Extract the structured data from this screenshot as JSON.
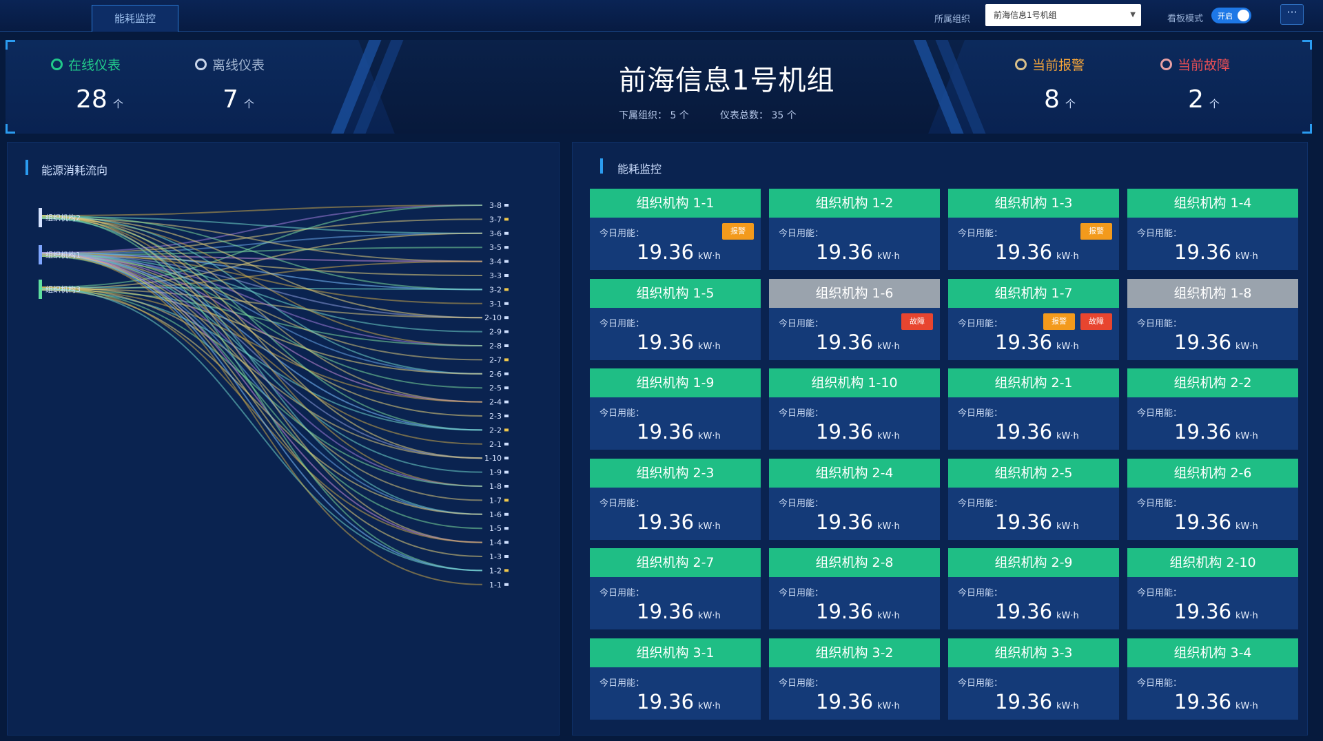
{
  "nav": {
    "active_tab": "能耗监控",
    "org_label": "所属组织",
    "org_value": "前海信息1号机组",
    "board_label": "看板模式",
    "board_toggle": "开启",
    "more": "···"
  },
  "stats": {
    "online": {
      "label": "在线仪表",
      "value": "28",
      "unit": "个",
      "color": "#21c98a"
    },
    "offline": {
      "label": "离线仪表",
      "value": "7",
      "unit": "个",
      "color": "#9fb3cf"
    },
    "alarm": {
      "label": "当前报警",
      "value": "8",
      "unit": "个",
      "color": "#f2a33a"
    },
    "fault": {
      "label": "当前故障",
      "value": "2",
      "unit": "个",
      "color": "#e84e55"
    }
  },
  "unit": {
    "title": "前海信息1号机组",
    "sub_org_label": "下属组织：",
    "sub_org_value": "5 个",
    "meter_total_label": "仪表总数：",
    "meter_total_value": "35 个"
  },
  "flow_panel": {
    "title": "能源消耗流向",
    "sources": [
      "组织机构2",
      "组织机构1",
      "组织机构3"
    ],
    "targets": [
      "3-8",
      "3-7",
      "3-6",
      "3-5",
      "3-4",
      "3-3",
      "3-2",
      "3-1",
      "2-10",
      "2-9",
      "2-8",
      "2-7",
      "2-6",
      "2-5",
      "2-4",
      "2-3",
      "2-2",
      "2-1",
      "1-10",
      "1-9",
      "1-8",
      "1-7",
      "1-6",
      "1-5",
      "1-4",
      "1-3",
      "1-2",
      "1-1"
    ]
  },
  "monitor_panel": {
    "title": "能耗监控",
    "today_label": "今日用能：",
    "cards": [
      {
        "name": "组织机构 1-1",
        "value": "19.36",
        "unit": "kW·h",
        "status": "online",
        "badges": [
          "报警"
        ]
      },
      {
        "name": "组织机构 1-2",
        "value": "19.36",
        "unit": "kW·h",
        "status": "online",
        "badges": []
      },
      {
        "name": "组织机构 1-3",
        "value": "19.36",
        "unit": "kW·h",
        "status": "online",
        "badges": [
          "报警"
        ]
      },
      {
        "name": "组织机构 1-4",
        "value": "19.36",
        "unit": "kW·h",
        "status": "online",
        "badges": []
      },
      {
        "name": "组织机构 1-5",
        "value": "19.36",
        "unit": "kW·h",
        "status": "online",
        "badges": []
      },
      {
        "name": "组织机构 1-6",
        "value": "19.36",
        "unit": "kW·h",
        "status": "offline",
        "badges": [
          "故障"
        ]
      },
      {
        "name": "组织机构 1-7",
        "value": "19.36",
        "unit": "kW·h",
        "status": "online",
        "badges": [
          "报警",
          "故障"
        ]
      },
      {
        "name": "组织机构 1-8",
        "value": "19.36",
        "unit": "kW·h",
        "status": "offline",
        "badges": []
      },
      {
        "name": "组织机构 1-9",
        "value": "19.36",
        "unit": "kW·h",
        "status": "online",
        "badges": []
      },
      {
        "name": "组织机构 1-10",
        "value": "19.36",
        "unit": "kW·h",
        "status": "online",
        "badges": []
      },
      {
        "name": "组织机构 2-1",
        "value": "19.36",
        "unit": "kW·h",
        "status": "online",
        "badges": []
      },
      {
        "name": "组织机构 2-2",
        "value": "19.36",
        "unit": "kW·h",
        "status": "online",
        "badges": []
      },
      {
        "name": "组织机构 2-3",
        "value": "19.36",
        "unit": "kW·h",
        "status": "online",
        "badges": []
      },
      {
        "name": "组织机构 2-4",
        "value": "19.36",
        "unit": "kW·h",
        "status": "online",
        "badges": []
      },
      {
        "name": "组织机构 2-5",
        "value": "19.36",
        "unit": "kW·h",
        "status": "online",
        "badges": []
      },
      {
        "name": "组织机构 2-6",
        "value": "19.36",
        "unit": "kW·h",
        "status": "online",
        "badges": []
      },
      {
        "name": "组织机构 2-7",
        "value": "19.36",
        "unit": "kW·h",
        "status": "online",
        "badges": []
      },
      {
        "name": "组织机构 2-8",
        "value": "19.36",
        "unit": "kW·h",
        "status": "online",
        "badges": []
      },
      {
        "name": "组织机构 2-9",
        "value": "19.36",
        "unit": "kW·h",
        "status": "online",
        "badges": []
      },
      {
        "name": "组织机构 2-10",
        "value": "19.36",
        "unit": "kW·h",
        "status": "online",
        "badges": []
      },
      {
        "name": "组织机构 3-1",
        "value": "19.36",
        "unit": "kW·h",
        "status": "online",
        "badges": []
      },
      {
        "name": "组织机构 3-2",
        "value": "19.36",
        "unit": "kW·h",
        "status": "online",
        "badges": []
      },
      {
        "name": "组织机构 3-3",
        "value": "19.36",
        "unit": "kW·h",
        "status": "online",
        "badges": []
      },
      {
        "name": "组织机构 3-4",
        "value": "19.36",
        "unit": "kW·h",
        "status": "online",
        "badges": []
      }
    ]
  },
  "colors": {
    "card_online": "#1fbe85",
    "card_offline": "#9aa3ad",
    "alarm": "#f39a1c",
    "fault": "#e8452f",
    "accent": "#2b9cf0"
  }
}
